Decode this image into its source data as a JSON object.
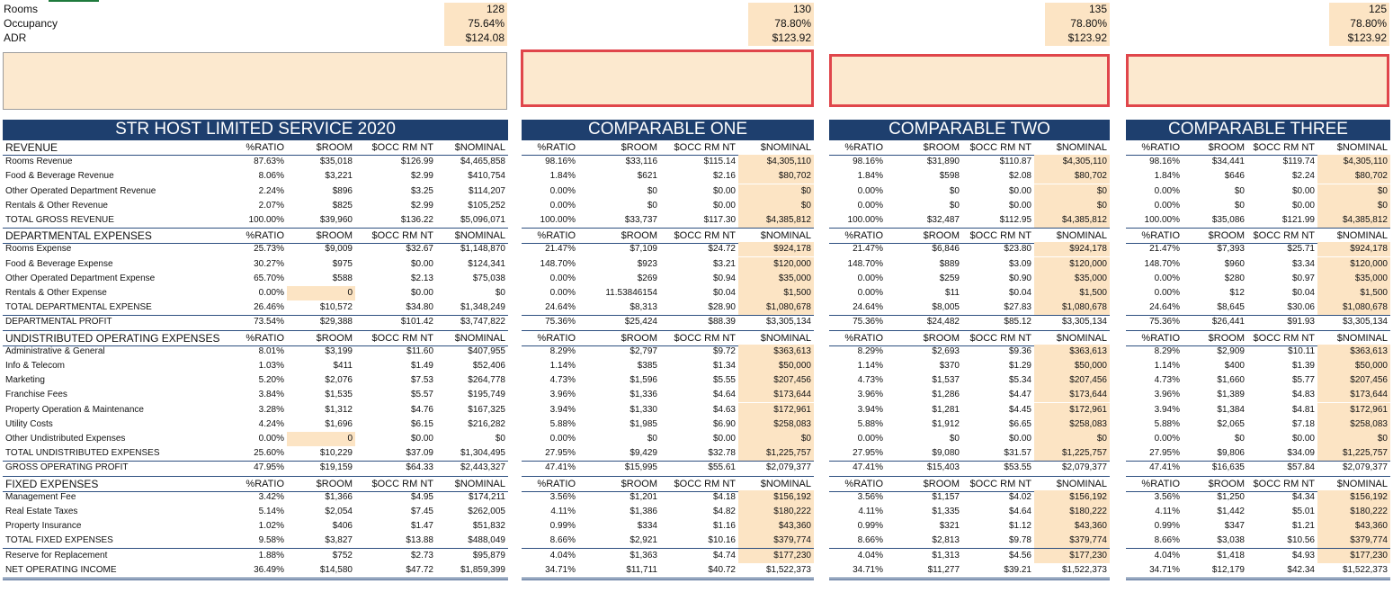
{
  "summary": {
    "labels": [
      "Rooms",
      "Occupancy",
      "ADR"
    ],
    "columns": [
      [
        "128",
        "75.64%",
        "$124.08"
      ],
      [
        "130",
        "78.80%",
        "$123.92"
      ],
      [
        "135",
        "78.80%",
        "$123.92"
      ],
      [
        "125",
        "78.80%",
        "$123.92"
      ]
    ]
  },
  "tables": [
    {
      "title": "STR HOST LIMITED SERVICE 2020",
      "colheads": [
        "%RATIO",
        "$ROOM",
        "$OCC RM NT",
        "$NOMINAL"
      ]
    },
    {
      "title": "COMPARABLE ONE",
      "colheads": [
        "%RATIO",
        "$ROOM",
        "$OCC RM NT",
        "$NOMINAL"
      ]
    },
    {
      "title": "COMPARABLE TWO",
      "colheads": [
        "%RATIO",
        "$ROOM",
        "$OCC RM NT",
        "$NOMINAL"
      ]
    },
    {
      "title": "COMPARABLE THREE",
      "colheads": [
        "%RATIO",
        "$ROOM",
        "$OCC RM NT",
        "$NOMINAL"
      ]
    }
  ],
  "rows": [
    {
      "label": "REVENUE",
      "type": "section"
    },
    {
      "label": "Rooms Revenue",
      "vals": [
        [
          "87.63%",
          "$35,018",
          "$126.99",
          "$4,465,858"
        ],
        [
          "98.16%",
          "$33,116",
          "$115.14",
          "$4,305,110"
        ],
        [
          "98.16%",
          "$31,890",
          "$110.87",
          "$4,305,110"
        ],
        [
          "98.16%",
          "$34,441",
          "$119.74",
          "$4,305,110"
        ]
      ]
    },
    {
      "label": "Food & Beverage Revenue",
      "vals": [
        [
          "8.06%",
          "$3,221",
          "$2.99",
          "$410,754"
        ],
        [
          "1.84%",
          "$621",
          "$2.16",
          "$80,702"
        ],
        [
          "1.84%",
          "$598",
          "$2.08",
          "$80,702"
        ],
        [
          "1.84%",
          "$646",
          "$2.24",
          "$80,702"
        ]
      ]
    },
    {
      "label": "Other Operated Department Revenue",
      "vals": [
        [
          "2.24%",
          "$896",
          "$3.25",
          "$114,207"
        ],
        [
          "0.00%",
          "$0",
          "$0.00",
          "$0"
        ],
        [
          "0.00%",
          "$0",
          "$0.00",
          "$0"
        ],
        [
          "0.00%",
          "$0",
          "$0.00",
          "$0"
        ]
      ]
    },
    {
      "label": "Rentals & Other Revenue",
      "vals": [
        [
          "2.07%",
          "$825",
          "$2.99",
          "$105,252"
        ],
        [
          "0.00%",
          "$0",
          "$0.00",
          "$0"
        ],
        [
          "0.00%",
          "$0",
          "$0.00",
          "$0"
        ],
        [
          "0.00%",
          "$0",
          "$0.00",
          "$0"
        ]
      ]
    },
    {
      "label": "TOTAL GROSS REVENUE",
      "type": "total",
      "vals": [
        [
          "100.00%",
          "$39,960",
          "$136.22",
          "$5,096,071"
        ],
        [
          "100.00%",
          "$33,737",
          "$117.30",
          "$4,385,812"
        ],
        [
          "100.00%",
          "$32,487",
          "$112.95",
          "$4,385,812"
        ],
        [
          "100.00%",
          "$35,086",
          "$121.99",
          "$4,385,812"
        ]
      ]
    },
    {
      "label": "DEPARTMENTAL EXPENSES",
      "type": "section"
    },
    {
      "label": "Rooms Expense",
      "vals": [
        [
          "25.73%",
          "$9,009",
          "$32.67",
          "$1,148,870"
        ],
        [
          "21.47%",
          "$7,109",
          "$24.72",
          "$924,178"
        ],
        [
          "21.47%",
          "$6,846",
          "$23.80",
          "$924,178"
        ],
        [
          "21.47%",
          "$7,393",
          "$25.71",
          "$924,178"
        ]
      ]
    },
    {
      "label": "Food & Beverage Expense",
      "vals": [
        [
          "30.27%",
          "$975",
          "$0.00",
          "$124,341"
        ],
        [
          "148.70%",
          "$923",
          "$3.21",
          "$120,000"
        ],
        [
          "148.70%",
          "$889",
          "$3.09",
          "$120,000"
        ],
        [
          "148.70%",
          "$960",
          "$3.34",
          "$120,000"
        ]
      ]
    },
    {
      "label": "Other Operated Department Expense",
      "vals": [
        [
          "65.70%",
          "$588",
          "$2.13",
          "$75,038"
        ],
        [
          "0.00%",
          "$269",
          "$0.94",
          "$35,000"
        ],
        [
          "0.00%",
          "$259",
          "$0.90",
          "$35,000"
        ],
        [
          "0.00%",
          "$280",
          "$0.97",
          "$35,000"
        ]
      ]
    },
    {
      "label": "Rentals & Other Expense",
      "tanroom": true,
      "vals": [
        [
          "0.00%",
          "0",
          "$0.00",
          "$0"
        ],
        [
          "0.00%",
          "11.53846154",
          "$0.04",
          "$1,500"
        ],
        [
          "0.00%",
          "$11",
          "$0.04",
          "$1,500"
        ],
        [
          "0.00%",
          "$12",
          "$0.04",
          "$1,500"
        ]
      ]
    },
    {
      "label": "TOTAL DEPARTMENTAL EXPENSE",
      "type": "total",
      "vals": [
        [
          "26.46%",
          "$10,572",
          "$34.80",
          "$1,348,249"
        ],
        [
          "24.64%",
          "$8,313",
          "$28.90",
          "$1,080,678"
        ],
        [
          "24.64%",
          "$8,005",
          "$27.83",
          "$1,080,678"
        ],
        [
          "24.64%",
          "$8,645",
          "$30.06",
          "$1,080,678"
        ]
      ]
    },
    {
      "label": "DEPARTMENTAL PROFIT",
      "type": "total2",
      "vals": [
        [
          "73.54%",
          "$29,388",
          "$101.42",
          "$3,747,822"
        ],
        [
          "75.36%",
          "$25,424",
          "$88.39",
          "$3,305,134"
        ],
        [
          "75.36%",
          "$24,482",
          "$85.12",
          "$3,305,134"
        ],
        [
          "75.36%",
          "$26,441",
          "$91.93",
          "$3,305,134"
        ]
      ]
    },
    {
      "label": "UNDISTRIBUTED OPERATING EXPENSES",
      "type": "section"
    },
    {
      "label": "Administrative & General",
      "vals": [
        [
          "8.01%",
          "$3,199",
          "$11.60",
          "$407,955"
        ],
        [
          "8.29%",
          "$2,797",
          "$9.72",
          "$363,613"
        ],
        [
          "8.29%",
          "$2,693",
          "$9.36",
          "$363,613"
        ],
        [
          "8.29%",
          "$2,909",
          "$10.11",
          "$363,613"
        ]
      ]
    },
    {
      "label": "Info & Telecom",
      "vals": [
        [
          "1.03%",
          "$411",
          "$1.49",
          "$52,406"
        ],
        [
          "1.14%",
          "$385",
          "$1.34",
          "$50,000"
        ],
        [
          "1.14%",
          "$370",
          "$1.29",
          "$50,000"
        ],
        [
          "1.14%",
          "$400",
          "$1.39",
          "$50,000"
        ]
      ]
    },
    {
      "label": "Marketing",
      "vals": [
        [
          "5.20%",
          "$2,076",
          "$7.53",
          "$264,778"
        ],
        [
          "4.73%",
          "$1,596",
          "$5.55",
          "$207,456"
        ],
        [
          "4.73%",
          "$1,537",
          "$5.34",
          "$207,456"
        ],
        [
          "4.73%",
          "$1,660",
          "$5.77",
          "$207,456"
        ]
      ]
    },
    {
      "label": "Franchise Fees",
      "vals": [
        [
          "3.84%",
          "$1,535",
          "$5.57",
          "$195,749"
        ],
        [
          "3.96%",
          "$1,336",
          "$4.64",
          "$173,644"
        ],
        [
          "3.96%",
          "$1,286",
          "$4.47",
          "$173,644"
        ],
        [
          "3.96%",
          "$1,389",
          "$4.83",
          "$173,644"
        ]
      ]
    },
    {
      "label": "Property Operation & Maintenance",
      "vals": [
        [
          "3.28%",
          "$1,312",
          "$4.76",
          "$167,325"
        ],
        [
          "3.94%",
          "$1,330",
          "$4.63",
          "$172,961"
        ],
        [
          "3.94%",
          "$1,281",
          "$4.45",
          "$172,961"
        ],
        [
          "3.94%",
          "$1,384",
          "$4.81",
          "$172,961"
        ]
      ]
    },
    {
      "label": "Utility Costs",
      "vals": [
        [
          "4.24%",
          "$1,696",
          "$6.15",
          "$216,282"
        ],
        [
          "5.88%",
          "$1,985",
          "$6.90",
          "$258,083"
        ],
        [
          "5.88%",
          "$1,912",
          "$6.65",
          "$258,083"
        ],
        [
          "5.88%",
          "$2,065",
          "$7.18",
          "$258,083"
        ]
      ]
    },
    {
      "label": "Other Undistributed Expenses",
      "tanroom": true,
      "vals": [
        [
          "0.00%",
          "0",
          "$0.00",
          "$0"
        ],
        [
          "0.00%",
          "$0",
          "$0.00",
          "$0"
        ],
        [
          "0.00%",
          "$0",
          "$0.00",
          "$0"
        ],
        [
          "0.00%",
          "$0",
          "$0.00",
          "$0"
        ]
      ]
    },
    {
      "label": "TOTAL UNDISTRIBUTED EXPENSES",
      "type": "total",
      "vals": [
        [
          "25.60%",
          "$10,229",
          "$37.09",
          "$1,304,495"
        ],
        [
          "27.95%",
          "$9,429",
          "$32.78",
          "$1,225,757"
        ],
        [
          "27.95%",
          "$9,080",
          "$31.57",
          "$1,225,757"
        ],
        [
          "27.95%",
          "$9,806",
          "$34.09",
          "$1,225,757"
        ]
      ]
    },
    {
      "label": "GROSS OPERATING PROFIT",
      "type": "total2",
      "vals": [
        [
          "47.95%",
          "$19,159",
          "$64.33",
          "$2,443,327"
        ],
        [
          "47.41%",
          "$15,995",
          "$55.61",
          "$2,079,377"
        ],
        [
          "47.41%",
          "$15,403",
          "$53.55",
          "$2,079,377"
        ],
        [
          "47.41%",
          "$16,635",
          "$57.84",
          "$2,079,377"
        ]
      ]
    },
    {
      "label": "FIXED EXPENSES",
      "type": "section"
    },
    {
      "label": "Management Fee",
      "vals": [
        [
          "3.42%",
          "$1,366",
          "$4.95",
          "$174,211"
        ],
        [
          "3.56%",
          "$1,201",
          "$4.18",
          "$156,192"
        ],
        [
          "3.56%",
          "$1,157",
          "$4.02",
          "$156,192"
        ],
        [
          "3.56%",
          "$1,250",
          "$4.34",
          "$156,192"
        ]
      ]
    },
    {
      "label": "Real Estate Taxes",
      "vals": [
        [
          "5.14%",
          "$2,054",
          "$7.45",
          "$262,005"
        ],
        [
          "4.11%",
          "$1,386",
          "$4.82",
          "$180,222"
        ],
        [
          "4.11%",
          "$1,335",
          "$4.64",
          "$180,222"
        ],
        [
          "4.11%",
          "$1,442",
          "$5.01",
          "$180,222"
        ]
      ]
    },
    {
      "label": "Property Insurance",
      "vals": [
        [
          "1.02%",
          "$406",
          "$1.47",
          "$51,832"
        ],
        [
          "0.99%",
          "$334",
          "$1.16",
          "$43,360"
        ],
        [
          "0.99%",
          "$321",
          "$1.12",
          "$43,360"
        ],
        [
          "0.99%",
          "$347",
          "$1.21",
          "$43,360"
        ]
      ]
    },
    {
      "label": "TOTAL FIXED EXPENSES",
      "type": "total",
      "vals": [
        [
          "9.58%",
          "$3,827",
          "$13.88",
          "$488,049"
        ],
        [
          "8.66%",
          "$2,921",
          "$10.16",
          "$379,774"
        ],
        [
          "8.66%",
          "$2,813",
          "$9.78",
          "$379,774"
        ],
        [
          "8.66%",
          "$3,038",
          "$10.56",
          "$379,774"
        ]
      ]
    },
    {
      "label": "Reserve for Replacement",
      "vals": [
        [
          "1.88%",
          "$752",
          "$2.73",
          "$95,879"
        ],
        [
          "4.04%",
          "$1,363",
          "$4.74",
          "$177,230"
        ],
        [
          "4.04%",
          "$1,313",
          "$4.56",
          "$177,230"
        ],
        [
          "4.04%",
          "$1,418",
          "$4.93",
          "$177,230"
        ]
      ]
    },
    {
      "label": "NET OPERATING INCOME",
      "type": "final",
      "vals": [
        [
          "36.49%",
          "$14,580",
          "$47.72",
          "$1,859,399"
        ],
        [
          "34.71%",
          "$11,711",
          "$40.72",
          "$1,522,373"
        ],
        [
          "34.71%",
          "$11,277",
          "$39.21",
          "$1,522,373"
        ],
        [
          "34.71%",
          "$12,179",
          "$42.34",
          "$1,522,373"
        ]
      ]
    }
  ]
}
